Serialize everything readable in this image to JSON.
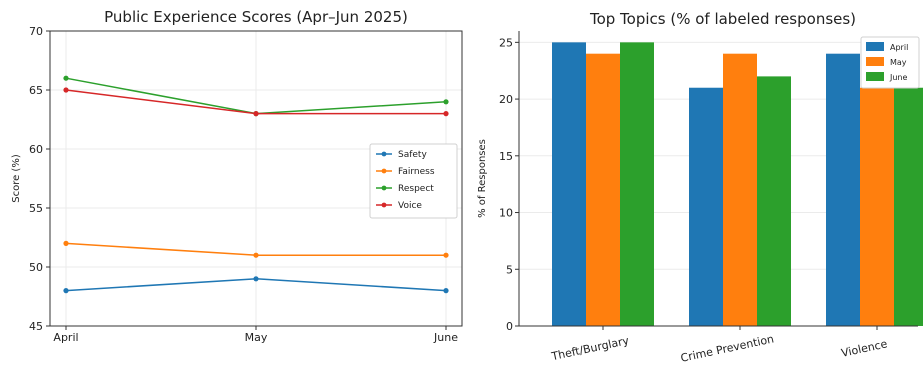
{
  "chart_data": [
    {
      "type": "line",
      "title": "Public Experience Scores (Apr–Jun 2025)",
      "xlabel": "",
      "ylabel": "Score (%)",
      "categories": [
        "April",
        "May",
        "June"
      ],
      "ylim": [
        45,
        70
      ],
      "yticks": [
        45,
        50,
        55,
        60,
        65,
        70
      ],
      "grid": true,
      "legend_position": "center-right",
      "series": [
        {
          "name": "Safety",
          "values": [
            48,
            49,
            48
          ],
          "color": "#1f77b4"
        },
        {
          "name": "Fairness",
          "values": [
            52,
            51,
            51
          ],
          "color": "#ff7f0e"
        },
        {
          "name": "Respect",
          "values": [
            66,
            63,
            64
          ],
          "color": "#2ca02c"
        },
        {
          "name": "Voice",
          "values": [
            65,
            63,
            63
          ],
          "color": "#d62728"
        }
      ]
    },
    {
      "type": "bar",
      "title": "Top Topics (% of labeled responses)",
      "xlabel": "",
      "ylabel": "% of Responses",
      "categories": [
        "Theft/Burglary",
        "Crime Prevention",
        "Violence"
      ],
      "ylim": [
        0,
        26
      ],
      "yticks": [
        0,
        5,
        10,
        15,
        20,
        25
      ],
      "grid": true,
      "legend_position": "top-right",
      "series": [
        {
          "name": "April",
          "values": [
            25,
            21,
            24
          ],
          "color": "#1f77b4"
        },
        {
          "name": "May",
          "values": [
            24,
            24,
            21
          ],
          "color": "#ff7f0e"
        },
        {
          "name": "June",
          "values": [
            25,
            22,
            21
          ],
          "color": "#2ca02c"
        }
      ]
    }
  ]
}
